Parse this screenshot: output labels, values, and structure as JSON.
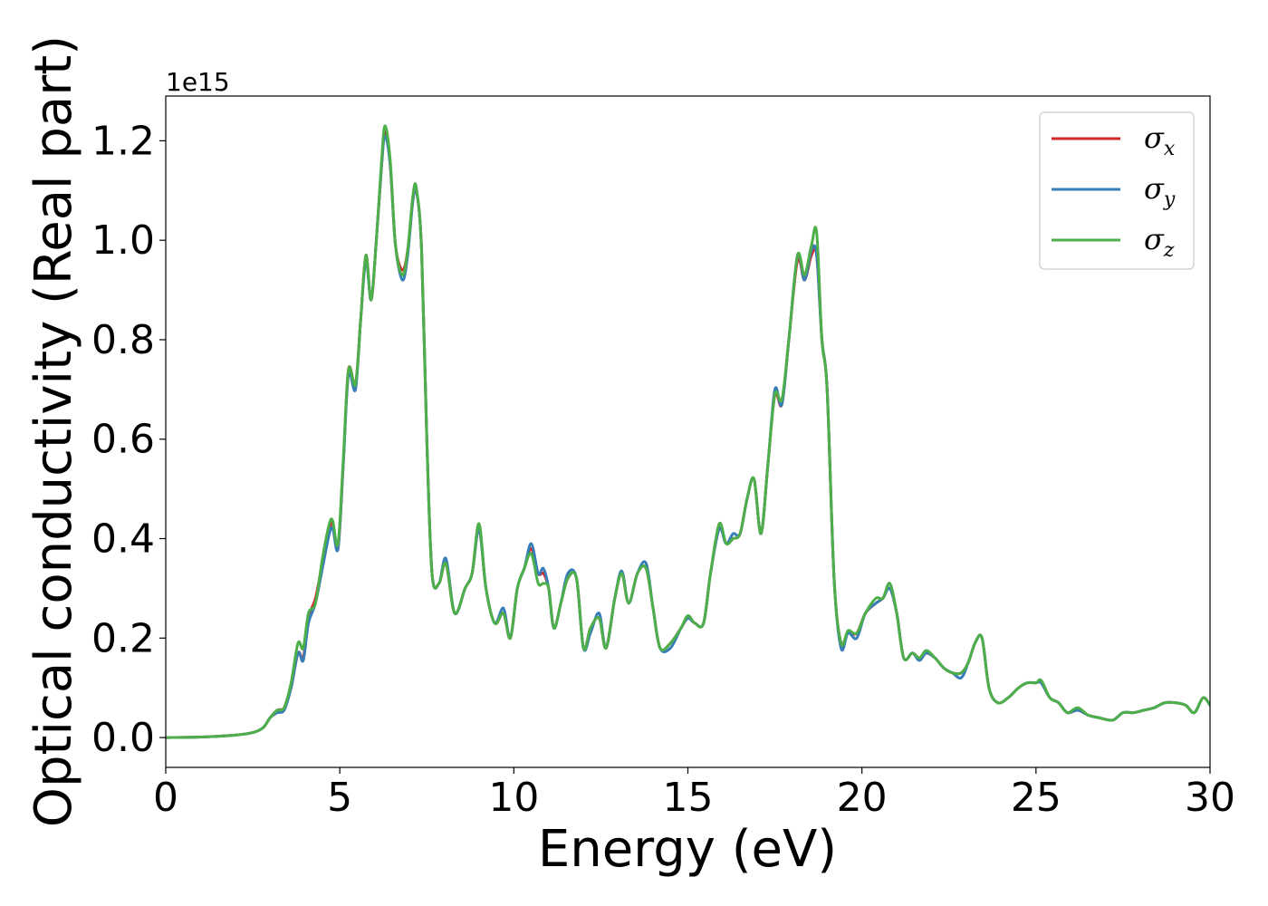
{
  "chart_data": {
    "type": "line",
    "title": "",
    "xlabel": "Energy (eV)",
    "ylabel": "Optical conductivity (Real part)",
    "y_offset_text": "1e15",
    "xlim": [
      0,
      30
    ],
    "ylim": [
      -0.06,
      1.29
    ],
    "x_ticks": [
      0,
      5,
      10,
      15,
      20,
      25,
      30
    ],
    "x_tick_labels": [
      "0",
      "5",
      "10",
      "15",
      "20",
      "25",
      "30"
    ],
    "y_ticks": [
      0.0,
      0.2,
      0.4,
      0.6,
      0.8,
      1.0,
      1.2
    ],
    "y_tick_labels": [
      "0.0",
      "0.2",
      "0.4",
      "0.6",
      "0.8",
      "1.0",
      "1.2"
    ],
    "grid": false,
    "legend_position": "top-right",
    "series": [
      {
        "name": "σx",
        "symbol": "σ",
        "subscript": "x",
        "color": "#d62728",
        "x": [
          0,
          1,
          2,
          2.5,
          2.8,
          3.0,
          3.2,
          3.4,
          3.6,
          3.8,
          3.95,
          4.1,
          4.3,
          4.5,
          4.7,
          4.8,
          4.95,
          5.1,
          5.25,
          5.45,
          5.6,
          5.75,
          5.9,
          6.05,
          6.2,
          6.3,
          6.45,
          6.6,
          6.8,
          6.95,
          7.1,
          7.2,
          7.35,
          7.5,
          7.65,
          7.85,
          8.05,
          8.3,
          8.6,
          8.8,
          9.0,
          9.2,
          9.45,
          9.7,
          9.9,
          10.1,
          10.3,
          10.5,
          10.7,
          10.85,
          11.0,
          11.15,
          11.35,
          11.55,
          11.8,
          12.0,
          12.2,
          12.45,
          12.65,
          12.9,
          13.1,
          13.3,
          13.55,
          13.8,
          14.0,
          14.2,
          14.5,
          14.8,
          15.0,
          15.2,
          15.45,
          15.65,
          15.9,
          16.1,
          16.3,
          16.5,
          16.7,
          16.9,
          17.1,
          17.3,
          17.5,
          17.7,
          17.9,
          18.15,
          18.35,
          18.55,
          18.7,
          18.85,
          19.0,
          19.2,
          19.4,
          19.6,
          19.85,
          20.1,
          20.4,
          20.6,
          20.8,
          21.0,
          21.2,
          21.45,
          21.65,
          21.85,
          22.1,
          22.35,
          22.6,
          22.85,
          23.05,
          23.25,
          23.45,
          23.65,
          23.9,
          24.2,
          24.5,
          24.75,
          25.0,
          25.15,
          25.4,
          25.65,
          25.9,
          26.2,
          26.5,
          26.8,
          27.2,
          27.5,
          27.8,
          28.1,
          28.4,
          28.7,
          29.0,
          29.3,
          29.55,
          29.8,
          30.0
        ],
        "y": [
          0,
          0.001,
          0.005,
          0.01,
          0.02,
          0.04,
          0.055,
          0.06,
          0.1,
          0.17,
          0.16,
          0.24,
          0.28,
          0.35,
          0.42,
          0.43,
          0.38,
          0.55,
          0.74,
          0.71,
          0.84,
          0.97,
          0.88,
          1.0,
          1.15,
          1.22,
          1.15,
          0.99,
          0.94,
          0.98,
          1.08,
          1.1,
          0.98,
          0.6,
          0.33,
          0.31,
          0.35,
          0.25,
          0.3,
          0.33,
          0.42,
          0.3,
          0.23,
          0.25,
          0.2,
          0.3,
          0.34,
          0.38,
          0.33,
          0.33,
          0.3,
          0.22,
          0.27,
          0.32,
          0.32,
          0.18,
          0.22,
          0.24,
          0.18,
          0.28,
          0.33,
          0.27,
          0.33,
          0.34,
          0.26,
          0.18,
          0.19,
          0.22,
          0.24,
          0.23,
          0.23,
          0.33,
          0.42,
          0.39,
          0.4,
          0.41,
          0.48,
          0.52,
          0.41,
          0.55,
          0.69,
          0.67,
          0.8,
          0.96,
          0.92,
          0.97,
          0.97,
          0.8,
          0.7,
          0.32,
          0.19,
          0.21,
          0.21,
          0.25,
          0.27,
          0.28,
          0.3,
          0.25,
          0.16,
          0.17,
          0.16,
          0.17,
          0.16,
          0.14,
          0.13,
          0.13,
          0.15,
          0.19,
          0.2,
          0.1,
          0.07,
          0.08,
          0.1,
          0.11,
          0.11,
          0.11,
          0.08,
          0.07,
          0.05,
          0.055,
          0.045,
          0.04,
          0.035,
          0.05,
          0.05,
          0.055,
          0.06,
          0.07,
          0.07,
          0.065,
          0.05,
          0.08,
          0.065
        ]
      },
      {
        "name": "σy",
        "symbol": "σ",
        "subscript": "y",
        "color": "#377eb8",
        "x": [
          0,
          1,
          2,
          2.5,
          2.8,
          3.0,
          3.2,
          3.4,
          3.6,
          3.8,
          3.95,
          4.1,
          4.3,
          4.5,
          4.7,
          4.8,
          4.95,
          5.1,
          5.25,
          5.45,
          5.6,
          5.75,
          5.9,
          6.05,
          6.2,
          6.3,
          6.45,
          6.6,
          6.8,
          6.95,
          7.1,
          7.2,
          7.35,
          7.5,
          7.65,
          7.85,
          8.05,
          8.3,
          8.6,
          8.8,
          9.0,
          9.2,
          9.45,
          9.7,
          9.9,
          10.1,
          10.3,
          10.5,
          10.7,
          10.85,
          11.0,
          11.15,
          11.35,
          11.55,
          11.8,
          12.0,
          12.2,
          12.45,
          12.65,
          12.9,
          13.1,
          13.3,
          13.55,
          13.8,
          14.0,
          14.2,
          14.5,
          14.8,
          15.0,
          15.2,
          15.45,
          15.65,
          15.9,
          16.1,
          16.3,
          16.5,
          16.7,
          16.9,
          17.1,
          17.3,
          17.5,
          17.7,
          17.9,
          18.15,
          18.35,
          18.55,
          18.7,
          18.85,
          19.0,
          19.2,
          19.4,
          19.6,
          19.85,
          20.1,
          20.4,
          20.6,
          20.8,
          21.0,
          21.2,
          21.45,
          21.65,
          21.85,
          22.1,
          22.35,
          22.6,
          22.85,
          23.05,
          23.25,
          23.45,
          23.65,
          23.9,
          24.2,
          24.5,
          24.75,
          25.0,
          25.15,
          25.4,
          25.65,
          25.9,
          26.2,
          26.5,
          26.8,
          27.2,
          27.5,
          27.8,
          28.1,
          28.4,
          28.7,
          29.0,
          29.3,
          29.55,
          29.8,
          30.0
        ],
        "y": [
          0,
          0.001,
          0.005,
          0.01,
          0.02,
          0.04,
          0.05,
          0.055,
          0.1,
          0.17,
          0.155,
          0.23,
          0.27,
          0.34,
          0.41,
          0.42,
          0.38,
          0.55,
          0.73,
          0.7,
          0.84,
          0.96,
          0.88,
          1.0,
          1.15,
          1.21,
          1.15,
          0.99,
          0.92,
          0.97,
          1.08,
          1.1,
          0.98,
          0.6,
          0.33,
          0.31,
          0.36,
          0.25,
          0.3,
          0.33,
          0.42,
          0.3,
          0.23,
          0.26,
          0.2,
          0.3,
          0.34,
          0.39,
          0.33,
          0.34,
          0.3,
          0.22,
          0.27,
          0.33,
          0.32,
          0.18,
          0.21,
          0.25,
          0.18,
          0.28,
          0.335,
          0.27,
          0.33,
          0.35,
          0.26,
          0.18,
          0.18,
          0.22,
          0.24,
          0.23,
          0.23,
          0.33,
          0.42,
          0.39,
          0.41,
          0.41,
          0.48,
          0.52,
          0.41,
          0.55,
          0.7,
          0.67,
          0.8,
          0.97,
          0.92,
          0.98,
          0.97,
          0.8,
          0.7,
          0.32,
          0.18,
          0.21,
          0.2,
          0.25,
          0.27,
          0.28,
          0.3,
          0.25,
          0.16,
          0.17,
          0.155,
          0.17,
          0.16,
          0.14,
          0.13,
          0.12,
          0.15,
          0.19,
          0.2,
          0.1,
          0.07,
          0.08,
          0.1,
          0.11,
          0.11,
          0.11,
          0.08,
          0.07,
          0.05,
          0.055,
          0.045,
          0.04,
          0.035,
          0.05,
          0.05,
          0.055,
          0.06,
          0.07,
          0.07,
          0.065,
          0.05,
          0.08,
          0.065
        ]
      },
      {
        "name": "σz",
        "symbol": "σ",
        "subscript": "z",
        "color": "#4daf4a",
        "x": [
          0,
          1,
          2,
          2.5,
          2.8,
          3.0,
          3.2,
          3.4,
          3.6,
          3.8,
          3.95,
          4.1,
          4.3,
          4.5,
          4.7,
          4.8,
          4.95,
          5.1,
          5.25,
          5.45,
          5.6,
          5.75,
          5.9,
          6.05,
          6.2,
          6.3,
          6.45,
          6.6,
          6.8,
          6.95,
          7.1,
          7.2,
          7.35,
          7.5,
          7.65,
          7.85,
          8.05,
          8.3,
          8.6,
          8.8,
          9.0,
          9.2,
          9.45,
          9.7,
          9.9,
          10.1,
          10.3,
          10.5,
          10.7,
          10.85,
          11.0,
          11.15,
          11.35,
          11.55,
          11.8,
          12.0,
          12.2,
          12.45,
          12.65,
          12.9,
          13.1,
          13.3,
          13.55,
          13.8,
          14.0,
          14.2,
          14.5,
          14.8,
          15.0,
          15.2,
          15.45,
          15.65,
          15.9,
          16.1,
          16.3,
          16.5,
          16.7,
          16.9,
          17.1,
          17.3,
          17.5,
          17.7,
          17.9,
          18.15,
          18.35,
          18.55,
          18.7,
          18.85,
          19.0,
          19.2,
          19.4,
          19.6,
          19.85,
          20.1,
          20.4,
          20.6,
          20.8,
          21.0,
          21.2,
          21.45,
          21.65,
          21.85,
          22.1,
          22.35,
          22.6,
          22.85,
          23.05,
          23.25,
          23.45,
          23.65,
          23.9,
          24.2,
          24.5,
          24.75,
          25.0,
          25.15,
          25.4,
          25.65,
          25.9,
          26.2,
          26.5,
          26.8,
          27.2,
          27.5,
          27.8,
          28.1,
          28.4,
          28.7,
          29.0,
          29.3,
          29.55,
          29.8,
          30.0
        ],
        "y": [
          0,
          0.001,
          0.005,
          0.01,
          0.02,
          0.04,
          0.055,
          0.06,
          0.11,
          0.19,
          0.18,
          0.25,
          0.27,
          0.36,
          0.43,
          0.435,
          0.39,
          0.56,
          0.74,
          0.71,
          0.84,
          0.97,
          0.88,
          1.0,
          1.16,
          1.23,
          1.16,
          0.99,
          0.93,
          0.98,
          1.09,
          1.105,
          0.98,
          0.6,
          0.33,
          0.31,
          0.35,
          0.25,
          0.3,
          0.33,
          0.43,
          0.3,
          0.23,
          0.25,
          0.2,
          0.3,
          0.34,
          0.37,
          0.31,
          0.31,
          0.3,
          0.22,
          0.27,
          0.32,
          0.32,
          0.18,
          0.22,
          0.24,
          0.18,
          0.28,
          0.33,
          0.27,
          0.33,
          0.34,
          0.26,
          0.18,
          0.19,
          0.22,
          0.245,
          0.23,
          0.23,
          0.33,
          0.43,
          0.39,
          0.4,
          0.41,
          0.48,
          0.52,
          0.41,
          0.55,
          0.69,
          0.68,
          0.8,
          0.97,
          0.93,
          0.99,
          1.015,
          0.8,
          0.7,
          0.32,
          0.19,
          0.215,
          0.21,
          0.25,
          0.28,
          0.28,
          0.31,
          0.25,
          0.16,
          0.17,
          0.16,
          0.175,
          0.16,
          0.14,
          0.13,
          0.13,
          0.15,
          0.19,
          0.2,
          0.1,
          0.07,
          0.08,
          0.1,
          0.11,
          0.11,
          0.115,
          0.08,
          0.07,
          0.05,
          0.06,
          0.045,
          0.04,
          0.035,
          0.05,
          0.05,
          0.055,
          0.06,
          0.07,
          0.07,
          0.065,
          0.05,
          0.08,
          0.065
        ]
      }
    ]
  }
}
